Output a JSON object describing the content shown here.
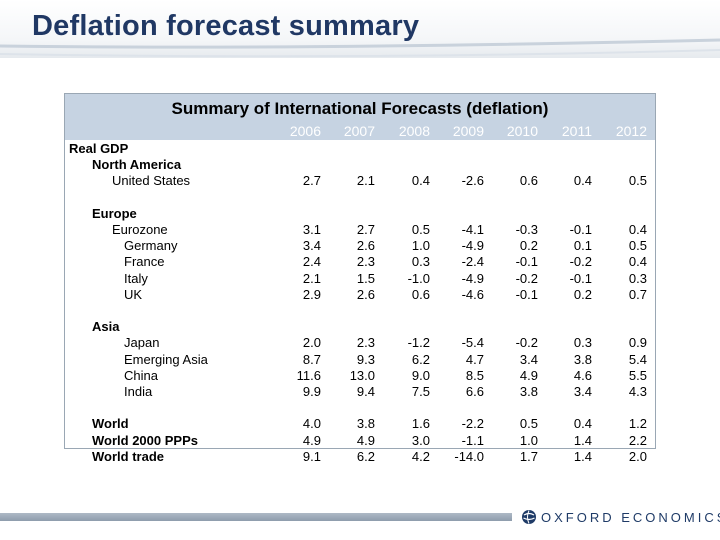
{
  "slide_title": "Deflation forecast summary",
  "table": {
    "title": "Summary of International Forecasts (deflation)",
    "years": [
      "2006",
      "2007",
      "2008",
      "2009",
      "2010",
      "2011",
      "2012"
    ],
    "rows": [
      {
        "label": "Real GDP",
        "indent": 0,
        "bold": true,
        "values": null
      },
      {
        "label": "North America",
        "indent": 1,
        "bold": true,
        "values": null
      },
      {
        "label": "United States",
        "indent": 2,
        "bold": false,
        "values": [
          "2.7",
          "2.1",
          "0.4",
          "-2.6",
          "0.6",
          "0.4",
          "0.5"
        ]
      },
      {
        "label": "",
        "indent": 0,
        "bold": false,
        "values": null
      },
      {
        "label": "Europe",
        "indent": 1,
        "bold": true,
        "values": null
      },
      {
        "label": "Eurozone",
        "indent": 2,
        "bold": false,
        "values": [
          "3.1",
          "2.7",
          "0.5",
          "-4.1",
          "-0.3",
          "-0.1",
          "0.4"
        ]
      },
      {
        "label": "Germany",
        "indent": 3,
        "bold": false,
        "values": [
          "3.4",
          "2.6",
          "1.0",
          "-4.9",
          "0.2",
          "0.1",
          "0.5"
        ]
      },
      {
        "label": "France",
        "indent": 3,
        "bold": false,
        "values": [
          "2.4",
          "2.3",
          "0.3",
          "-2.4",
          "-0.1",
          "-0.2",
          "0.4"
        ]
      },
      {
        "label": "Italy",
        "indent": 3,
        "bold": false,
        "values": [
          "2.1",
          "1.5",
          "-1.0",
          "-4.9",
          "-0.2",
          "-0.1",
          "0.3"
        ]
      },
      {
        "label": "UK",
        "indent": 3,
        "bold": false,
        "values": [
          "2.9",
          "2.6",
          "0.6",
          "-4.6",
          "-0.1",
          "0.2",
          "0.7"
        ]
      },
      {
        "label": "",
        "indent": 0,
        "bold": false,
        "values": null
      },
      {
        "label": "Asia",
        "indent": 1,
        "bold": true,
        "values": null
      },
      {
        "label": "Japan",
        "indent": 3,
        "bold": false,
        "values": [
          "2.0",
          "2.3",
          "-1.2",
          "-5.4",
          "-0.2",
          "0.3",
          "0.9"
        ]
      },
      {
        "label": "Emerging Asia",
        "indent": 3,
        "bold": false,
        "values": [
          "8.7",
          "9.3",
          "6.2",
          "4.7",
          "3.4",
          "3.8",
          "5.4"
        ]
      },
      {
        "label": "China",
        "indent": 3,
        "bold": false,
        "values": [
          "11.6",
          "13.0",
          "9.0",
          "8.5",
          "4.9",
          "4.6",
          "5.5"
        ]
      },
      {
        "label": "India",
        "indent": 3,
        "bold": false,
        "values": [
          "9.9",
          "9.4",
          "7.5",
          "6.6",
          "3.8",
          "3.4",
          "4.3"
        ]
      },
      {
        "label": "",
        "indent": 0,
        "bold": false,
        "values": null
      },
      {
        "label": "World",
        "indent": 1,
        "bold": true,
        "values": [
          "4.0",
          "3.8",
          "1.6",
          "-2.2",
          "0.5",
          "0.4",
          "1.2"
        ]
      },
      {
        "label": "World 2000 PPPs",
        "indent": 1,
        "bold": true,
        "values": [
          "4.9",
          "4.9",
          "3.0",
          "-1.1",
          "1.0",
          "1.4",
          "2.2"
        ]
      },
      {
        "label": "World trade",
        "indent": 1,
        "bold": true,
        "values": [
          "9.1",
          "6.2",
          "4.2",
          "-14.0",
          "1.7",
          "1.4",
          "2.0"
        ]
      }
    ]
  },
  "footer": {
    "logo_text": "OXFORD ECONOMICS",
    "logo_icon": "globe-icon"
  },
  "colors": {
    "title": "#203864",
    "table_header_bg": "#c6d3e2",
    "year_text": "#ffffff",
    "footer_bar": "#9aa8b8"
  }
}
